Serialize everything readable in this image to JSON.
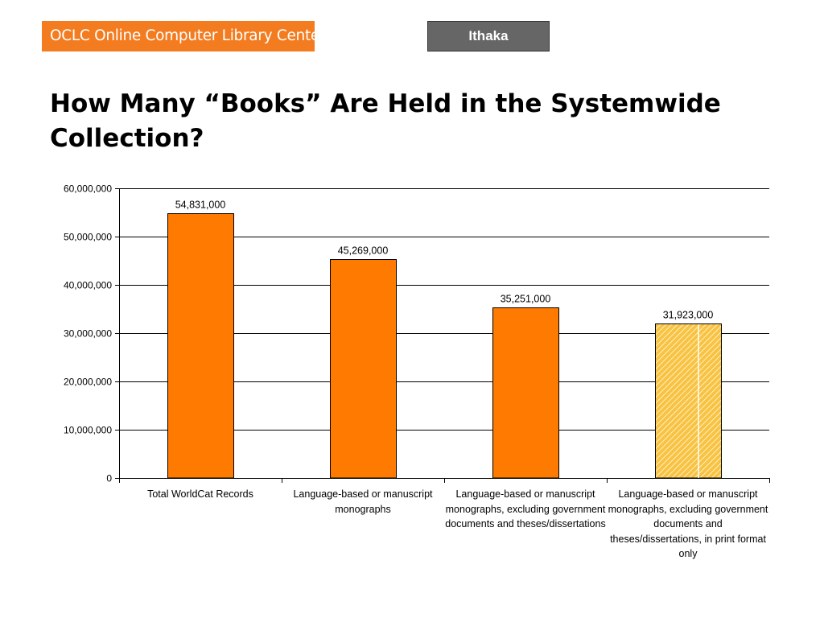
{
  "header": {
    "logo_text": "OCLC Online Computer Library Center",
    "tag_label": "Ithaka"
  },
  "title": "How Many “Books” Are Held in the Systemwide Collection?",
  "colors": {
    "brand_orange": "#f47c20",
    "bar_fill": "#ff7a00",
    "hatch_fill": "#f8c341",
    "tag_gray": "#666666"
  },
  "chart_data": {
    "type": "bar",
    "title": "",
    "xlabel": "",
    "ylabel": "",
    "ylim": [
      0,
      60000000
    ],
    "yticks": [
      0,
      10000000,
      20000000,
      30000000,
      40000000,
      50000000,
      60000000
    ],
    "ytick_labels": [
      "0",
      "10,000,000",
      "20,000,000",
      "30,000,000",
      "40,000,000",
      "50,000,000",
      "60,000,000"
    ],
    "grid": true,
    "legend": "none",
    "categories": [
      "Total WorldCat Records",
      "Language-based or manuscript monographs",
      "Language-based or manuscript monographs, excluding government documents and theses/dissertations",
      "Language-based or manuscript monographs, excluding government documents and theses/dissertations, in print format only"
    ],
    "values": [
      54831000,
      45269000,
      35251000,
      31923000
    ],
    "value_labels": [
      "54,831,000",
      "45,269,000",
      "35,251,000",
      "31,923,000"
    ],
    "styles": [
      "solid",
      "solid",
      "solid",
      "hatched"
    ]
  }
}
